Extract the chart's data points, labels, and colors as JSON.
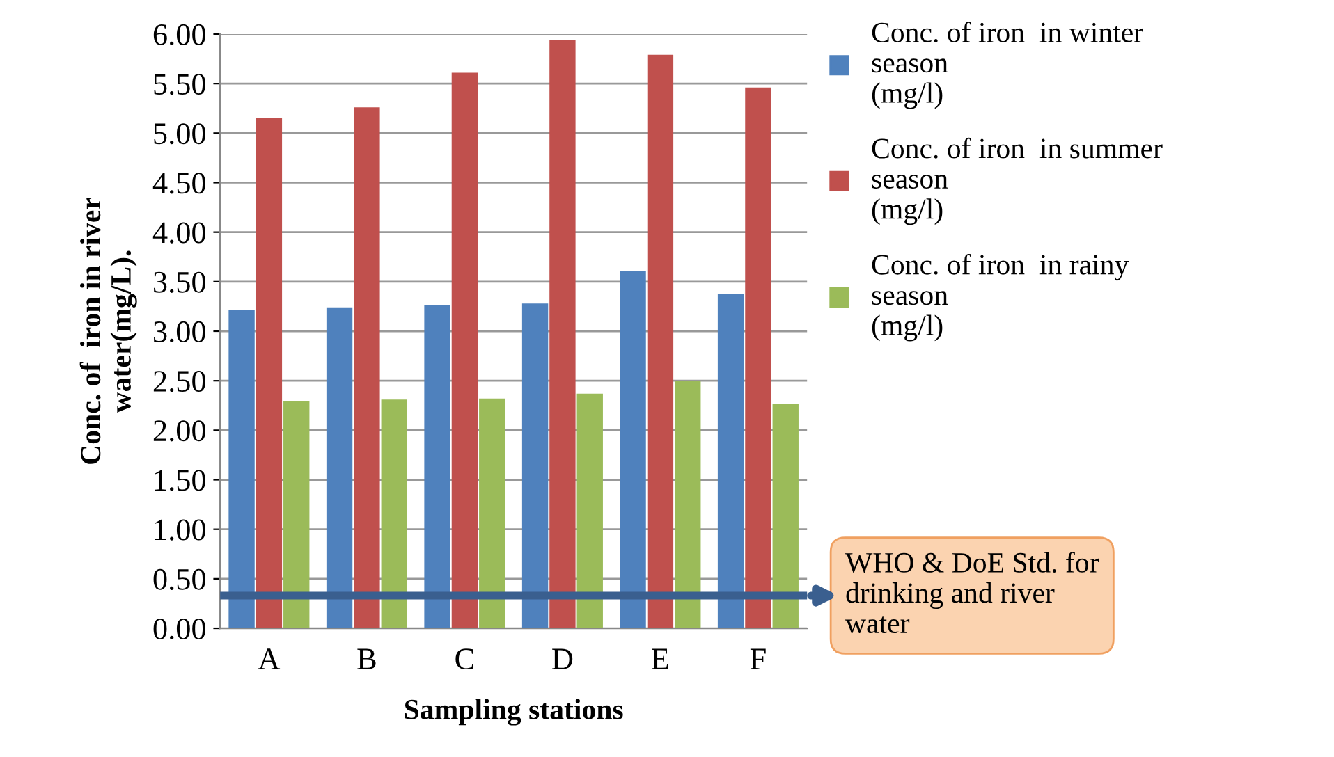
{
  "chart_data": {
    "type": "bar",
    "xlabel": "Sampling stations",
    "ylabel": "Conc. of  iron in river\nwater(mg/L).",
    "categories": [
      "A",
      "B",
      "C",
      "D",
      "E",
      "F"
    ],
    "series": [
      {
        "name": "Conc. of iron  in winter\nseason\n(mg/l)",
        "color": "#4f81bd",
        "values": [
          3.21,
          3.24,
          3.26,
          3.28,
          3.61,
          3.38
        ]
      },
      {
        "name": "Conc. of iron  in summer\nseason\n(mg/l)",
        "color": "#c0504d",
        "values": [
          5.15,
          5.26,
          5.61,
          5.94,
          5.79,
          5.46
        ]
      },
      {
        "name": "Conc. of iron  in rainy\nseason\n(mg/l)",
        "color": "#9bbb59",
        "values": [
          2.29,
          2.31,
          2.32,
          2.37,
          2.5,
          2.27
        ]
      }
    ],
    "ylim": [
      0,
      6
    ],
    "yticks": [
      {
        "value": 0,
        "label": "0.00"
      },
      {
        "value": 0.5,
        "label": "0.50"
      },
      {
        "value": 1,
        "label": "1.00"
      },
      {
        "value": 1.5,
        "label": "1.50"
      },
      {
        "value": 2,
        "label": "2.00"
      },
      {
        "value": 2.5,
        "label": "2.50"
      },
      {
        "value": 3,
        "label": "3.00"
      },
      {
        "value": 3.5,
        "label": "3.50"
      },
      {
        "value": 4,
        "label": "4.00"
      },
      {
        "value": 4.5,
        "label": "4.50"
      },
      {
        "value": 5,
        "label": "5.00"
      },
      {
        "value": 5.5,
        "label": "5.50"
      },
      {
        "value": 6,
        "label": "6.00"
      }
    ],
    "ref_lines": [
      {
        "axis": "y",
        "value": 0.33,
        "label": "WHO & DoE Std. for\ndrinking and river\nwater",
        "color": "#3a5f8f"
      }
    ],
    "grid": "y",
    "legend": "right"
  }
}
